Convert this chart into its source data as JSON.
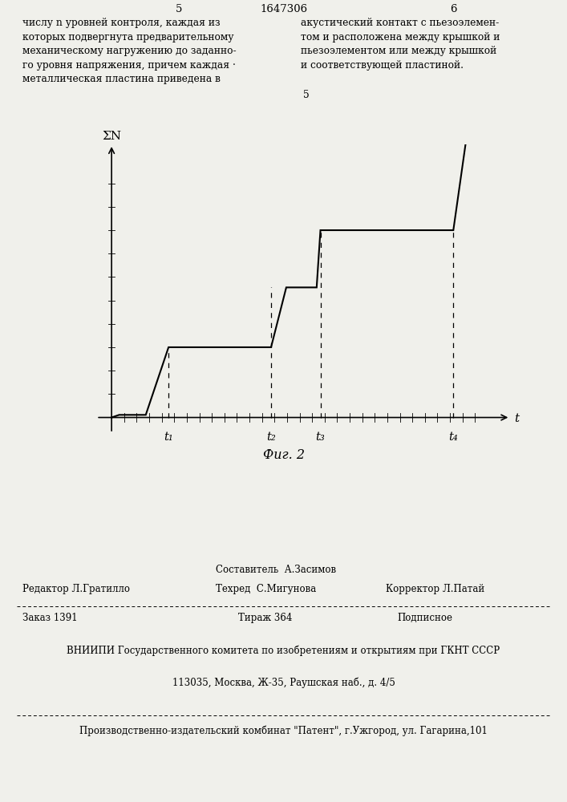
{
  "page_number_left": "5",
  "page_number_right": "6",
  "patent_number": "1647306",
  "ylabel": "ΣN",
  "xlabel": "t",
  "caption": "Фиг. 2",
  "tick_labels": [
    "t₁",
    "t₂",
    "t₃",
    "t₄"
  ],
  "line_color": "#000000",
  "bg_color": "#f0f0eb",
  "t1": 1.5,
  "t2": 4.2,
  "t3": 5.5,
  "t4": 9.0,
  "l0": 0.0,
  "l1": 0.27,
  "l2": 0.5,
  "l3": 0.72,
  "x_max": 10.5,
  "y_max": 1.05,
  "footer_editor": "Редактор Л.Гратилло",
  "footer_compiler": "Составитель  А.Засимов",
  "footer_techred": "Техред  С.Мигунова",
  "footer_corrector": "Корректор Л.Патай",
  "footer_order": "Заказ 1391",
  "footer_tirazh": "Тираж 364",
  "footer_podpisnoe": "Подписное",
  "footer_vnipi": "ВНИИПИ Государственного комитета по изобретениям и открытиям при ГКНТ СССР",
  "footer_address": "113035, Москва, Ж-35, Раушская наб., д. 4/5",
  "footer_patent": "Производственно-издательский комбинат \"Патент\", г.Ужгород, ул. Гагарина,101"
}
